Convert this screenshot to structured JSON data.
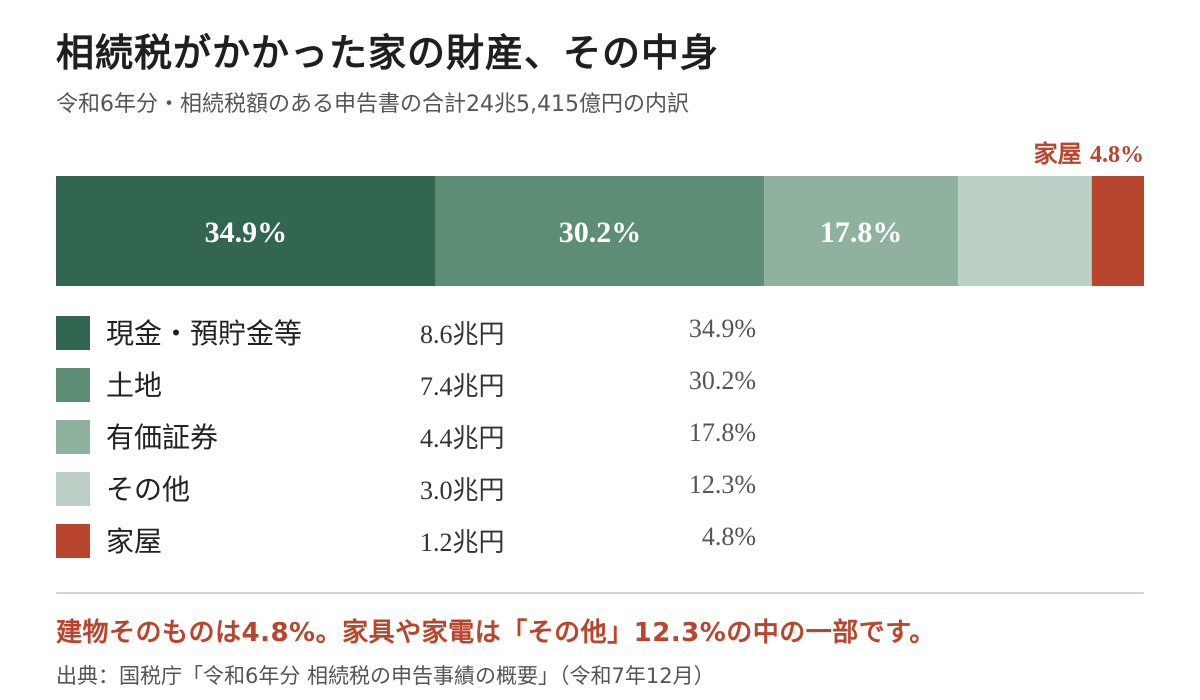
{
  "header": {
    "title": "相続税がかかった家の財産、その中身",
    "subtitle": "令和6年分・相続税額のある申告書の合計24兆5,415億円の内訳"
  },
  "callout": {
    "label": "家屋",
    "value": "4.8%"
  },
  "chart_data": {
    "type": "bar",
    "orientation": "horizontal-stacked-100",
    "title": "相続税がかかった家の財産、その中身",
    "subtitle": "令和6年分・相続税額のある申告書の合計24兆5,415億円の内訳",
    "categories": [
      "現金・預貯金等",
      "土地",
      "有価証券",
      "その他",
      "家屋"
    ],
    "values": [
      34.9,
      30.2,
      17.8,
      12.3,
      4.8
    ],
    "amounts": [
      "8.6兆円",
      "7.4兆円",
      "4.4兆円",
      "3.0兆円",
      "1.2兆円"
    ],
    "data_labels": [
      "34.9%",
      "30.2%",
      "17.8%",
      "",
      ""
    ],
    "colors": [
      "#336650",
      "#5e8d76",
      "#8fb29f",
      "#bccfc4",
      "#b8452e"
    ],
    "label_colors": [
      "#ffffff",
      "#ffffff",
      "#ffffff",
      "#ffffff",
      "#ffffff"
    ],
    "xlim": [
      0,
      100
    ]
  },
  "legend": {
    "items": [
      {
        "label": "現金・預貯金等",
        "amount": "8.6兆円",
        "pct": "34.9%",
        "color": "#336650"
      },
      {
        "label": "土地",
        "amount": "7.4兆円",
        "pct": "30.2%",
        "color": "#5e8d76"
      },
      {
        "label": "有価証券",
        "amount": "4.4兆円",
        "pct": "17.8%",
        "color": "#8fb29f"
      },
      {
        "label": "その他",
        "amount": "3.0兆円",
        "pct": "12.3%",
        "color": "#bccfc4"
      },
      {
        "label": "家屋",
        "amount": "1.2兆円",
        "pct": "4.8%",
        "color": "#b8452e"
      }
    ]
  },
  "footer": {
    "note": "建物そのものは4.8%。家具や家電は「その他」12.3%の中の一部です。",
    "source": "出典：国税庁「令和6年分 相続税の申告事績の概要」（令和7年12月）"
  }
}
